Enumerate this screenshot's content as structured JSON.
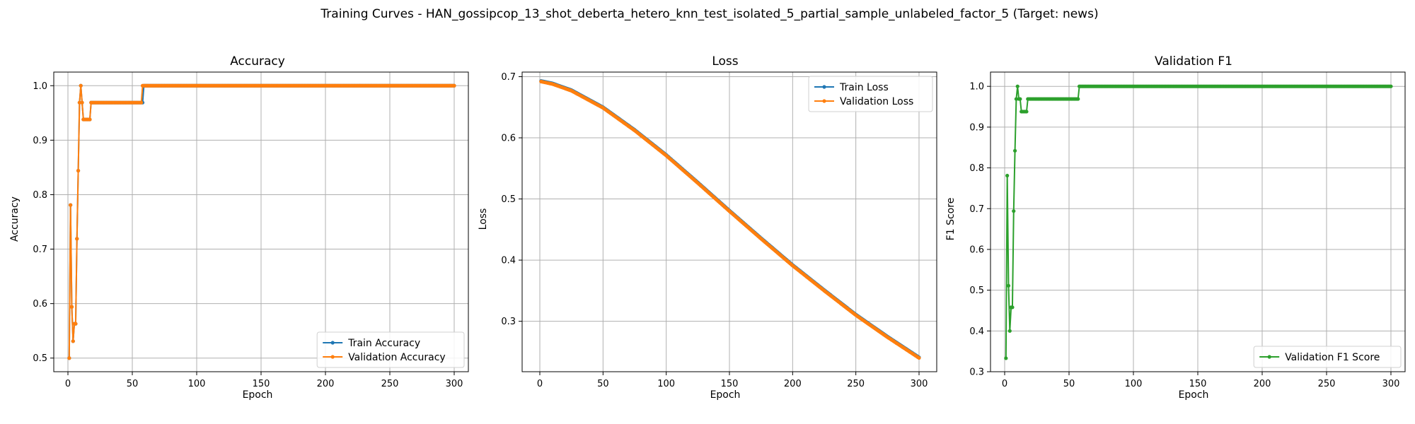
{
  "figure": {
    "title": "Training Curves - HAN_gossipcop_13_shot_deberta_hetero_knn_test_isolated_5_partial_sample_unlabeled_factor_5 (Target: news)"
  },
  "colors": {
    "train": "#1f77b4",
    "validation": "#ff7f0e",
    "f1": "#2ca02c",
    "grid": "#b0b0b0"
  },
  "chart_data": [
    {
      "type": "line",
      "title": "Accuracy",
      "xlabel": "Epoch",
      "ylabel": "Accuracy",
      "xlim": [
        -11,
        311
      ],
      "ylim": [
        0.475,
        1.025
      ],
      "xticks": [
        0,
        50,
        100,
        150,
        200,
        250,
        300
      ],
      "yticks": [
        0.5,
        0.6,
        0.7,
        0.8,
        0.9,
        1.0
      ],
      "ytick_labels": [
        "0.5",
        "0.6",
        "0.7",
        "0.8",
        "0.9",
        "1.0"
      ],
      "grid": true,
      "legend_position": "lower-right",
      "marker_stop": 300,
      "series": [
        {
          "name": "Train Accuracy",
          "color": "#1f77b4",
          "points": [
            [
              1,
              0.5
            ],
            [
              2,
              0.781
            ],
            [
              3,
              0.594
            ],
            [
              4,
              0.531
            ],
            [
              5,
              0.563
            ],
            [
              6,
              0.563
            ],
            [
              7,
              0.719
            ],
            [
              8,
              0.844
            ],
            [
              9,
              0.969
            ],
            [
              10,
              1.0
            ],
            [
              11,
              0.969
            ],
            [
              12,
              0.938
            ],
            [
              13,
              0.938
            ],
            [
              14,
              0.938
            ],
            [
              15,
              0.938
            ],
            [
              16,
              0.938
            ],
            [
              17,
              0.938
            ],
            [
              18,
              0.969
            ],
            [
              57,
              0.969
            ],
            [
              58,
              0.969
            ],
            [
              59,
              1.0
            ],
            [
              300,
              1.0
            ]
          ]
        },
        {
          "name": "Validation Accuracy",
          "color": "#ff7f0e",
          "points": [
            [
              1,
              0.5
            ],
            [
              2,
              0.781
            ],
            [
              3,
              0.594
            ],
            [
              4,
              0.531
            ],
            [
              5,
              0.563
            ],
            [
              6,
              0.563
            ],
            [
              7,
              0.719
            ],
            [
              8,
              0.844
            ],
            [
              9,
              0.969
            ],
            [
              10,
              1.0
            ],
            [
              11,
              0.969
            ],
            [
              12,
              0.938
            ],
            [
              13,
              0.938
            ],
            [
              14,
              0.938
            ],
            [
              15,
              0.938
            ],
            [
              16,
              0.938
            ],
            [
              17,
              0.938
            ],
            [
              18,
              0.969
            ],
            [
              57,
              0.969
            ],
            [
              58,
              1.0
            ],
            [
              300,
              1.0
            ]
          ]
        }
      ]
    },
    {
      "type": "line",
      "title": "Loss",
      "xlabel": "Epoch",
      "ylabel": "Loss",
      "xlim": [
        -14,
        314
      ],
      "ylim": [
        0.2175,
        0.7075
      ],
      "xticks": [
        0,
        50,
        100,
        150,
        200,
        250,
        300
      ],
      "yticks": [
        0.3,
        0.4,
        0.5,
        0.6,
        0.7
      ],
      "ytick_labels": [
        "0.3",
        "0.4",
        "0.5",
        "0.6",
        "0.7"
      ],
      "grid": true,
      "legend_position": "upper-right",
      "marker_stop": 300,
      "series": [
        {
          "name": "Train Loss",
          "color": "#1f77b4",
          "points": [
            [
              1,
              0.693
            ],
            [
              10,
              0.689
            ],
            [
              25,
              0.678
            ],
            [
              50,
              0.65
            ],
            [
              75,
              0.613
            ],
            [
              100,
              0.572
            ],
            [
              125,
              0.527
            ],
            [
              150,
              0.481
            ],
            [
              175,
              0.436
            ],
            [
              200,
              0.392
            ],
            [
              225,
              0.351
            ],
            [
              250,
              0.311
            ],
            [
              275,
              0.275
            ],
            [
              300,
              0.241
            ]
          ]
        },
        {
          "name": "Validation Loss",
          "color": "#ff7f0e",
          "points": [
            [
              1,
              0.692
            ],
            [
              10,
              0.688
            ],
            [
              25,
              0.677
            ],
            [
              50,
              0.649
            ],
            [
              75,
              0.612
            ],
            [
              100,
              0.571
            ],
            [
              125,
              0.526
            ],
            [
              150,
              0.48
            ],
            [
              175,
              0.435
            ],
            [
              200,
              0.391
            ],
            [
              225,
              0.35
            ],
            [
              250,
              0.31
            ],
            [
              275,
              0.274
            ],
            [
              300,
              0.24
            ]
          ]
        }
      ]
    },
    {
      "type": "line",
      "title": "Validation F1",
      "xlabel": "Epoch",
      "ylabel": "F1 Score",
      "xlim": [
        -11,
        311
      ],
      "ylim": [
        0.3,
        1.035
      ],
      "xticks": [
        0,
        50,
        100,
        150,
        200,
        250,
        300
      ],
      "yticks": [
        0.3,
        0.4,
        0.5,
        0.6,
        0.7,
        0.8,
        0.9,
        1.0
      ],
      "ytick_labels": [
        "0.3",
        "0.4",
        "0.5",
        "0.6",
        "0.7",
        "0.8",
        "0.9",
        "1.0"
      ],
      "grid": true,
      "legend_position": "lower-right",
      "marker_stop": 300,
      "series": [
        {
          "name": "Validation F1 Score",
          "color": "#2ca02c",
          "points": [
            [
              1,
              0.333
            ],
            [
              2,
              0.781
            ],
            [
              3,
              0.511
            ],
            [
              4,
              0.4
            ],
            [
              5,
              0.458
            ],
            [
              6,
              0.458
            ],
            [
              7,
              0.694
            ],
            [
              8,
              0.842
            ],
            [
              9,
              0.969
            ],
            [
              10,
              1.0
            ],
            [
              11,
              0.969
            ],
            [
              12,
              0.969
            ],
            [
              13,
              0.938
            ],
            [
              14,
              0.938
            ],
            [
              15,
              0.938
            ],
            [
              16,
              0.938
            ],
            [
              17,
              0.938
            ],
            [
              18,
              0.969
            ],
            [
              57,
              0.969
            ],
            [
              58,
              1.0
            ],
            [
              300,
              1.0
            ]
          ]
        }
      ]
    }
  ]
}
